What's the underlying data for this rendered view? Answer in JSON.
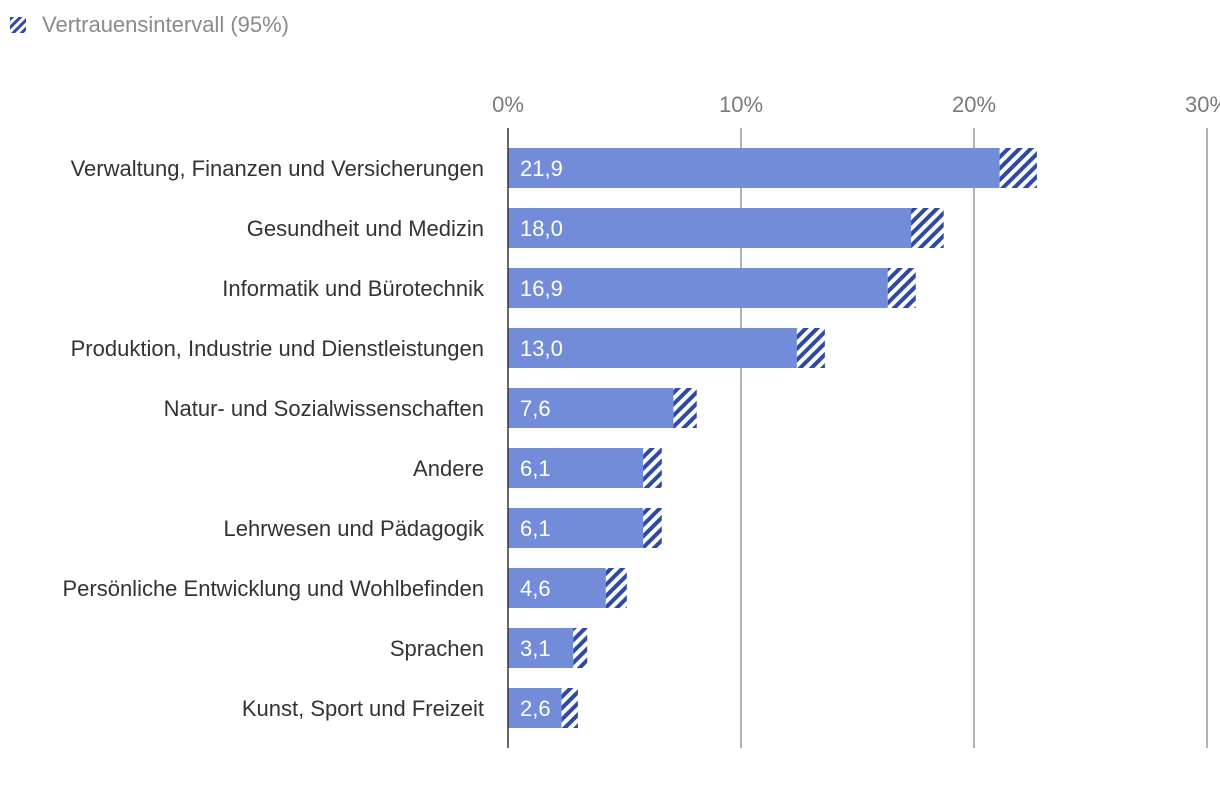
{
  "legend": {
    "label": "Vertrauensintervall (95%)"
  },
  "colors": {
    "bar": "#728cd9",
    "ci": "#2e4aa3",
    "grid": "#666666",
    "axis": "#333333"
  },
  "chart_data": {
    "type": "bar",
    "orientation": "horizontal",
    "title": "",
    "xlabel": "",
    "ylabel": "",
    "xlim": [
      0,
      30
    ],
    "ticks": [
      0,
      10,
      20,
      30
    ],
    "tick_labels": [
      "0%",
      "10%",
      "20%",
      "30%"
    ],
    "grid": true,
    "categories": [
      "Verwaltung, Finanzen und Versicherungen",
      "Gesundheit und Medizin",
      "Informatik und Bürotechnik",
      "Produktion, Industrie und Dienstleistungen",
      "Natur- und Sozialwissenschaften",
      "Andere",
      "Lehrwesen und Pädagogik",
      "Persönliche Entwicklung und Wohlbefinden",
      "Sprachen",
      "Kunst, Sport und Freizeit"
    ],
    "values": [
      21.9,
      18.0,
      16.9,
      13.0,
      7.6,
      6.1,
      6.1,
      4.6,
      3.1,
      2.6
    ],
    "value_labels": [
      "21,9",
      "18,0",
      "16,9",
      "13,0",
      "7,6",
      "6,1",
      "6,1",
      "4,6",
      "3,1",
      "2,6"
    ],
    "ci_low": [
      21.1,
      17.3,
      16.3,
      12.4,
      7.1,
      5.8,
      5.8,
      4.2,
      2.8,
      2.3
    ],
    "ci_high": [
      22.7,
      18.7,
      17.5,
      13.6,
      8.1,
      6.6,
      6.6,
      5.1,
      3.4,
      3.0
    ],
    "legend": [
      "Vertrauensintervall (95%)"
    ]
  }
}
